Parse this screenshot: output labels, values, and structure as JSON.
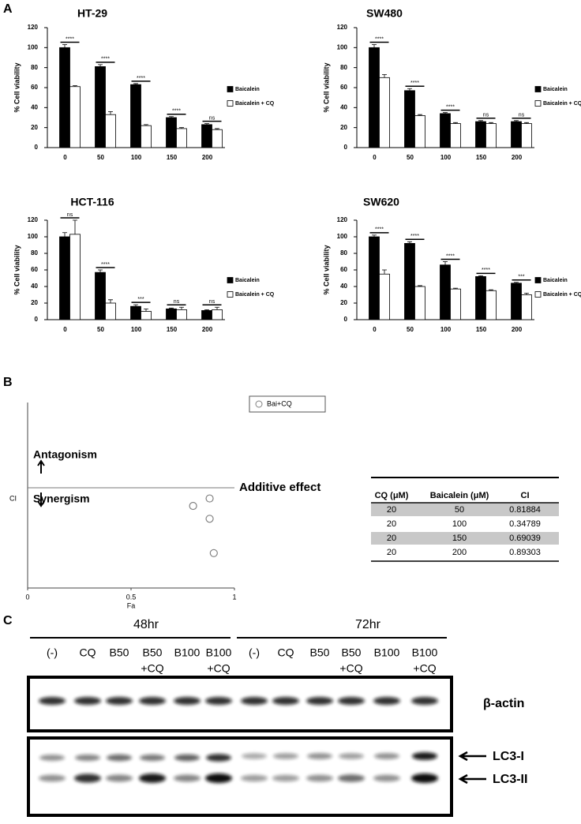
{
  "panel_labels": [
    "A",
    "B",
    "C"
  ],
  "chart_data": [
    {
      "type": "bar",
      "title": "HT-29",
      "y_label": "% Cell viability",
      "categories": [
        "0",
        "50",
        "100",
        "150",
        "200"
      ],
      "series": [
        {
          "name": "Baicalein",
          "color": "#000000",
          "values": [
            100,
            81,
            63,
            30,
            23
          ],
          "errors": [
            3,
            2,
            1,
            1,
            1
          ]
        },
        {
          "name": "Baicalein + CQ",
          "color": "#ffffff",
          "values": [
            61,
            33,
            22,
            19,
            18
          ],
          "errors": [
            1,
            3,
            1,
            1,
            1
          ]
        }
      ],
      "annotations": [
        "****",
        "****",
        "****",
        "****",
        "ns"
      ],
      "ylim": [
        0,
        120
      ],
      "yticks": [
        0,
        20,
        40,
        60,
        80,
        100,
        120
      ],
      "legend": "right"
    },
    {
      "type": "bar",
      "title": "SW480",
      "y_label": "% Cell viability",
      "categories": [
        "0",
        "50",
        "100",
        "150",
        "200"
      ],
      "series": [
        {
          "name": "Baicalein",
          "color": "#000000",
          "values": [
            100,
            57,
            34,
            26,
            26
          ],
          "errors": [
            3,
            2,
            1,
            1,
            1
          ]
        },
        {
          "name": "Baicalein + CQ",
          "color": "#ffffff",
          "values": [
            70,
            32,
            24,
            24,
            24
          ],
          "errors": [
            3,
            1,
            1,
            1,
            1
          ]
        }
      ],
      "annotations": [
        "****",
        "****",
        "****",
        "ns",
        "ns"
      ],
      "ylim": [
        0,
        120
      ],
      "yticks": [
        0,
        20,
        40,
        60,
        80,
        100,
        120
      ],
      "legend": "right"
    },
    {
      "type": "bar",
      "title": "HCT-116",
      "y_label": "% Cell viability",
      "categories": [
        "0",
        "50",
        "100",
        "150",
        "200"
      ],
      "series": [
        {
          "name": "Baicalein",
          "color": "#000000",
          "values": [
            100,
            57,
            16,
            13,
            11
          ],
          "errors": [
            5,
            3,
            2,
            1,
            1
          ]
        },
        {
          "name": "Baicalein + CQ",
          "color": "#ffffff",
          "values": [
            103,
            20,
            10,
            12,
            12
          ],
          "errors": [
            17,
            4,
            3,
            3,
            3
          ]
        }
      ],
      "annotations": [
        "ns",
        "****",
        "***",
        "ns",
        "ns"
      ],
      "ylim": [
        0,
        120
      ],
      "yticks": [
        0,
        20,
        40,
        60,
        80,
        100,
        120
      ],
      "legend": "right"
    },
    {
      "type": "bar",
      "title": "SW620",
      "y_label": "% Cell viability",
      "categories": [
        "0",
        "50",
        "100",
        "150",
        "200"
      ],
      "series": [
        {
          "name": "Baicalein",
          "color": "#000000",
          "values": [
            100,
            92,
            66,
            52,
            44
          ],
          "errors": [
            2,
            2,
            4,
            1,
            1
          ]
        },
        {
          "name": "Baicalein + CQ",
          "color": "#ffffff",
          "values": [
            55,
            40,
            37,
            35,
            30
          ],
          "errors": [
            5,
            1,
            1,
            1,
            2
          ]
        }
      ],
      "annotations": [
        "****",
        "****",
        "****",
        "****",
        "***"
      ],
      "ylim": [
        0,
        120
      ],
      "yticks": [
        0,
        20,
        40,
        60,
        80,
        100,
        120
      ],
      "legend": "right"
    },
    {
      "type": "scatter",
      "x_label": "Fa",
      "y_label": "CI",
      "series": [
        {
          "name": "Bai+CQ",
          "color": "#808080",
          "x": [
            0.8,
            0.88,
            0.88,
            0.9
          ],
          "values": [
            0.81884,
            0.89303,
            0.69039,
            0.34789
          ]
        }
      ],
      "xlim": [
        0,
        1
      ],
      "xticks": [
        0,
        0.5,
        1
      ],
      "ylim": [
        0,
        1.85
      ],
      "reference_line": {
        "value": 1,
        "label": "Additive effect"
      },
      "annotations": [
        "Antagonism",
        "Synergism"
      ],
      "legend": "top-right"
    }
  ],
  "table": {
    "header": [
      "CQ (μM)",
      "Baicalein (μM)",
      "CI"
    ],
    "rows": [
      [
        "20",
        "50",
        "0.81884"
      ],
      [
        "20",
        "100",
        "0.34789"
      ],
      [
        "20",
        "150",
        "0.69039"
      ],
      [
        "20",
        "200",
        "0.89303"
      ]
    ]
  },
  "blot": {
    "groups": [
      {
        "label": "48hr",
        "lanes": [
          [
            "(-)"
          ],
          [
            "CQ"
          ],
          [
            "B50"
          ],
          [
            "B50",
            "+CQ"
          ],
          [
            "B100"
          ],
          [
            "B100",
            "+CQ"
          ]
        ]
      },
      {
        "label": "72hr",
        "lanes": [
          [
            "(-)"
          ],
          [
            "CQ"
          ],
          [
            "B50"
          ],
          [
            "B50",
            "+CQ"
          ],
          [
            "B100"
          ],
          [
            "B100",
            "+CQ"
          ]
        ]
      }
    ],
    "markers": [
      "β-actin",
      "LC3-I",
      "LC3-II"
    ]
  }
}
